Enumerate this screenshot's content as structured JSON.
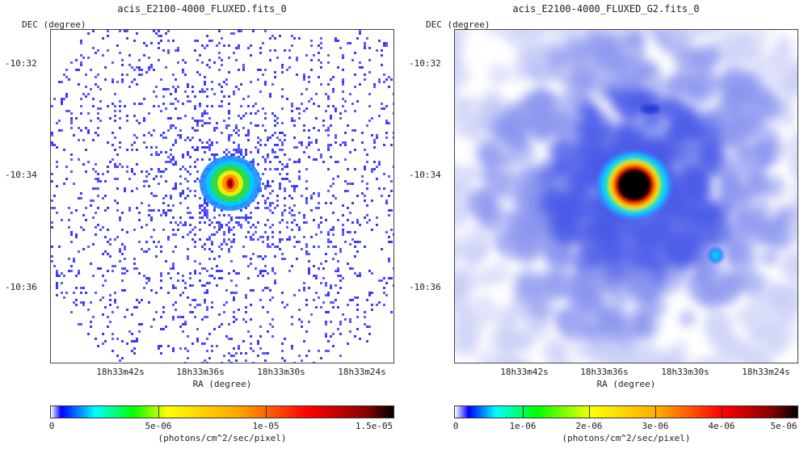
{
  "panels": [
    {
      "title": "acis_E2100-4000_FLUXED.fits_0",
      "ylabel": "DEC (degree)",
      "xlabel": "RA (degree)",
      "yticks": [
        "-10:32",
        "-10:34",
        "-10:36"
      ],
      "xticks": [
        "18h33m42s",
        "18h33m36s",
        "18h33m30s",
        "18h33m24s"
      ],
      "colorbar": {
        "labels": [
          "0",
          "5e-06",
          "1e-05",
          "1.5e-05"
        ],
        "unit": "(photons/cm^2/sec/pixel)"
      }
    },
    {
      "title": "acis_E2100-4000_FLUXED_G2.fits_0",
      "ylabel": "DEC (degree)",
      "xlabel": "RA (degree)",
      "yticks": [
        "-10:32",
        "-10:34",
        "-10:36"
      ],
      "xticks": [
        "18h33m42s",
        "18h33m36s",
        "18h33m30s",
        "18h33m24s"
      ],
      "colorbar": {
        "labels": [
          "0",
          "1e-06",
          "2e-06",
          "3e-06",
          "4e-06",
          "5e-06"
        ],
        "unit": "(photons/cm^2/sec/pixel)"
      }
    }
  ]
}
